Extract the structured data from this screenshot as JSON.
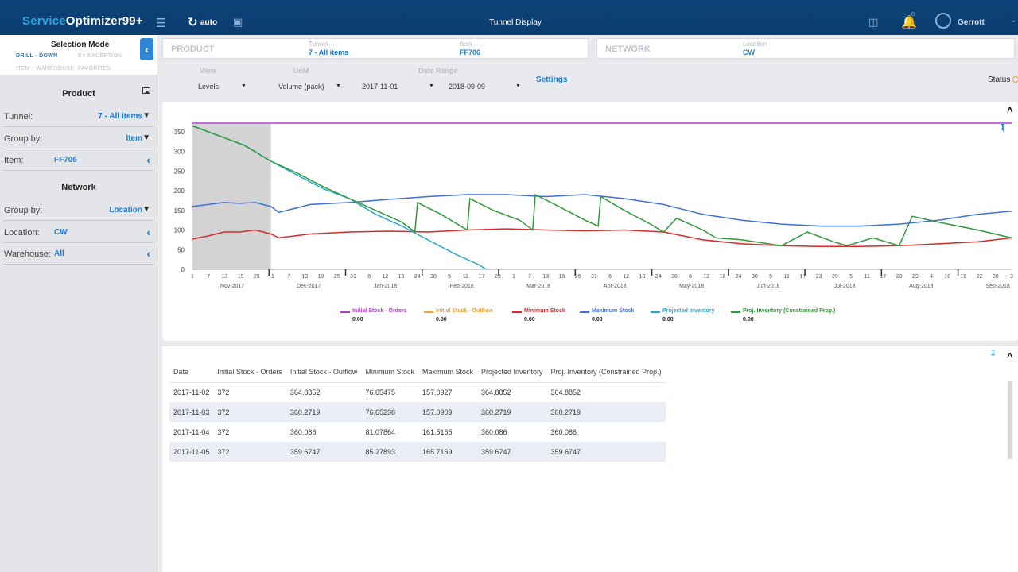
{
  "app": {
    "brand_part1": "Service",
    "brand_part2": "Optimizer99+",
    "refresh_label": "auto",
    "window_title": "Tunnel Display",
    "user_name": "Gerrott",
    "notification_count": "0"
  },
  "sidebar": {
    "selection_mode_title": "Selection Mode",
    "modes": [
      "DRILL - DOWN",
      "BY EXCEPTION",
      "ITEM - WAREHOUSE",
      "FAVORITES"
    ],
    "product_title": "Product",
    "tunnel_label": "Tunnel:",
    "tunnel_value": "7 - All items",
    "product_group_label": "Group by:",
    "product_group_value": "Item",
    "item_label": "Item:",
    "item_value": "FF706",
    "network_title": "Network",
    "network_group_label": "Group by:",
    "network_group_value": "Location",
    "location_label": "Location:",
    "location_value": "CW",
    "warehouse_label": "Warehouse:",
    "warehouse_value": "All"
  },
  "header": {
    "product_label": "PRODUCT",
    "tunnel_caption": "Tunnel",
    "tunnel_value": "7 - All items",
    "item_caption": "Item",
    "item_value": "FF706",
    "network_label": "NETWORK",
    "location_caption": "Location",
    "location_value": "CW"
  },
  "filters": {
    "view_label": "View",
    "view_value": "Levels",
    "uom_label": "UoM",
    "uom_value": "Volume (pack)",
    "date_range_label": "Date Range",
    "date_from": "2017-11-01",
    "date_to": "2018-09-09",
    "settings_label": "Settings",
    "status_label": "Status"
  },
  "chart_data": {
    "type": "line",
    "title": "",
    "xlabel": "",
    "ylabel": "",
    "ylim": [
      0,
      370
    ],
    "yticks": [
      0,
      50,
      100,
      150,
      200,
      250,
      300,
      350
    ],
    "x_tick_labels": [
      "1",
      "7",
      "13",
      "19",
      "25",
      "1",
      "7",
      "13",
      "19",
      "25",
      "31",
      "6",
      "12",
      "18",
      "24",
      "30",
      "5",
      "11",
      "17",
      "23",
      "1",
      "7",
      "13",
      "19",
      "25",
      "31",
      "6",
      "12",
      "18",
      "24",
      "30",
      "6",
      "12",
      "18",
      "24",
      "30",
      "5",
      "11",
      "17",
      "23",
      "29",
      "5",
      "11",
      "17",
      "23",
      "29",
      "4",
      "10",
      "16",
      "22",
      "28",
      "3"
    ],
    "month_labels": [
      "Nov-2017",
      "Dec-2017",
      "Jan-2018",
      "Feb-2018",
      "Mar-2018",
      "Apr-2018",
      "May-2018",
      "Jun-2018",
      "Jul-2018",
      "Aug-2018",
      "Sep-2018"
    ],
    "x_range_days": [
      0,
      313
    ],
    "shaded_period_days": [
      0,
      30
    ],
    "series": [
      {
        "name": "Initial Stock - Orders",
        "color": "#b33ad6",
        "value_label": "0.00",
        "x": [
          0,
          313
        ],
        "y": [
          372,
          372
        ]
      },
      {
        "name": "Initial Stock - Outflow",
        "color": "#f0a030",
        "value_label": "0.00",
        "x": [],
        "y": []
      },
      {
        "name": "Minimum Stock",
        "color": "#d42a2a",
        "value_label": "0.00",
        "x": [
          0,
          6,
          12,
          18,
          24,
          30,
          33,
          45,
          60,
          75,
          90,
          105,
          120,
          135,
          150,
          165,
          180,
          195,
          210,
          225,
          240,
          255,
          270,
          285,
          300,
          313
        ],
        "y": [
          77,
          85,
          95,
          95,
          100,
          90,
          80,
          90,
          95,
          97,
          95,
          100,
          103,
          100,
          98,
          100,
          95,
          75,
          65,
          60,
          58,
          58,
          60,
          65,
          70,
          80
        ]
      },
      {
        "name": "Maximum Stock",
        "color": "#3f6fd8",
        "value_label": "0.00",
        "x": [
          0,
          6,
          12,
          18,
          24,
          30,
          33,
          45,
          60,
          75,
          90,
          105,
          120,
          135,
          150,
          165,
          180,
          195,
          210,
          225,
          240,
          255,
          270,
          285,
          300,
          313
        ],
        "y": [
          160,
          165,
          170,
          168,
          170,
          160,
          145,
          165,
          170,
          178,
          185,
          190,
          190,
          185,
          190,
          180,
          165,
          140,
          125,
          115,
          110,
          110,
          115,
          125,
          140,
          148
        ]
      },
      {
        "name": "Projected Inventory",
        "color": "#2aa9cc",
        "value_label": "0.00",
        "x": [
          0,
          10,
          20,
          30,
          40,
          50,
          60,
          70,
          80,
          90,
          100,
          110,
          112
        ],
        "y": [
          365,
          340,
          315,
          275,
          240,
          205,
          180,
          140,
          110,
          75,
          40,
          10,
          0
        ]
      },
      {
        "name": "Proj. Inventory (Constrained Prop.)",
        "color": "#2f9a3c",
        "value_label": "0.00",
        "x": [
          0,
          10,
          20,
          30,
          40,
          50,
          60,
          70,
          80,
          85,
          86,
          95,
          105,
          106,
          115,
          125,
          130,
          131,
          140,
          150,
          155,
          156,
          165,
          175,
          180,
          185,
          195,
          200,
          210,
          220,
          225,
          235,
          245,
          250,
          260,
          270,
          275,
          285,
          300,
          313
        ],
        "y": [
          365,
          340,
          315,
          275,
          245,
          210,
          180,
          150,
          120,
          95,
          170,
          140,
          100,
          180,
          150,
          125,
          100,
          190,
          160,
          125,
          110,
          185,
          150,
          115,
          95,
          130,
          100,
          80,
          75,
          65,
          60,
          95,
          70,
          60,
          80,
          60,
          135,
          120,
          100,
          80
        ]
      }
    ]
  },
  "table": {
    "columns": [
      "Date",
      "Initial Stock - Orders",
      "Initial Stock - Outflow",
      "Minimum Stock",
      "Maximum Stock",
      "Projected Inventory",
      "Proj. Inventory (Constrained Prop.)"
    ],
    "rows": [
      [
        "2017-11-02",
        "372",
        "364.8852",
        "76.65475",
        "157.0927",
        "364.8852",
        "364.8852"
      ],
      [
        "2017-11-03",
        "372",
        "360.2719",
        "76.65298",
        "157.0909",
        "360.2719",
        "360.2719"
      ],
      [
        "2017-11-04",
        "372",
        "360.086",
        "81.07864",
        "161.5165",
        "360.086",
        "360.086"
      ],
      [
        "2017-11-05",
        "372",
        "359.6747",
        "85.27893",
        "165.7169",
        "359.6747",
        "359.6747"
      ]
    ]
  }
}
